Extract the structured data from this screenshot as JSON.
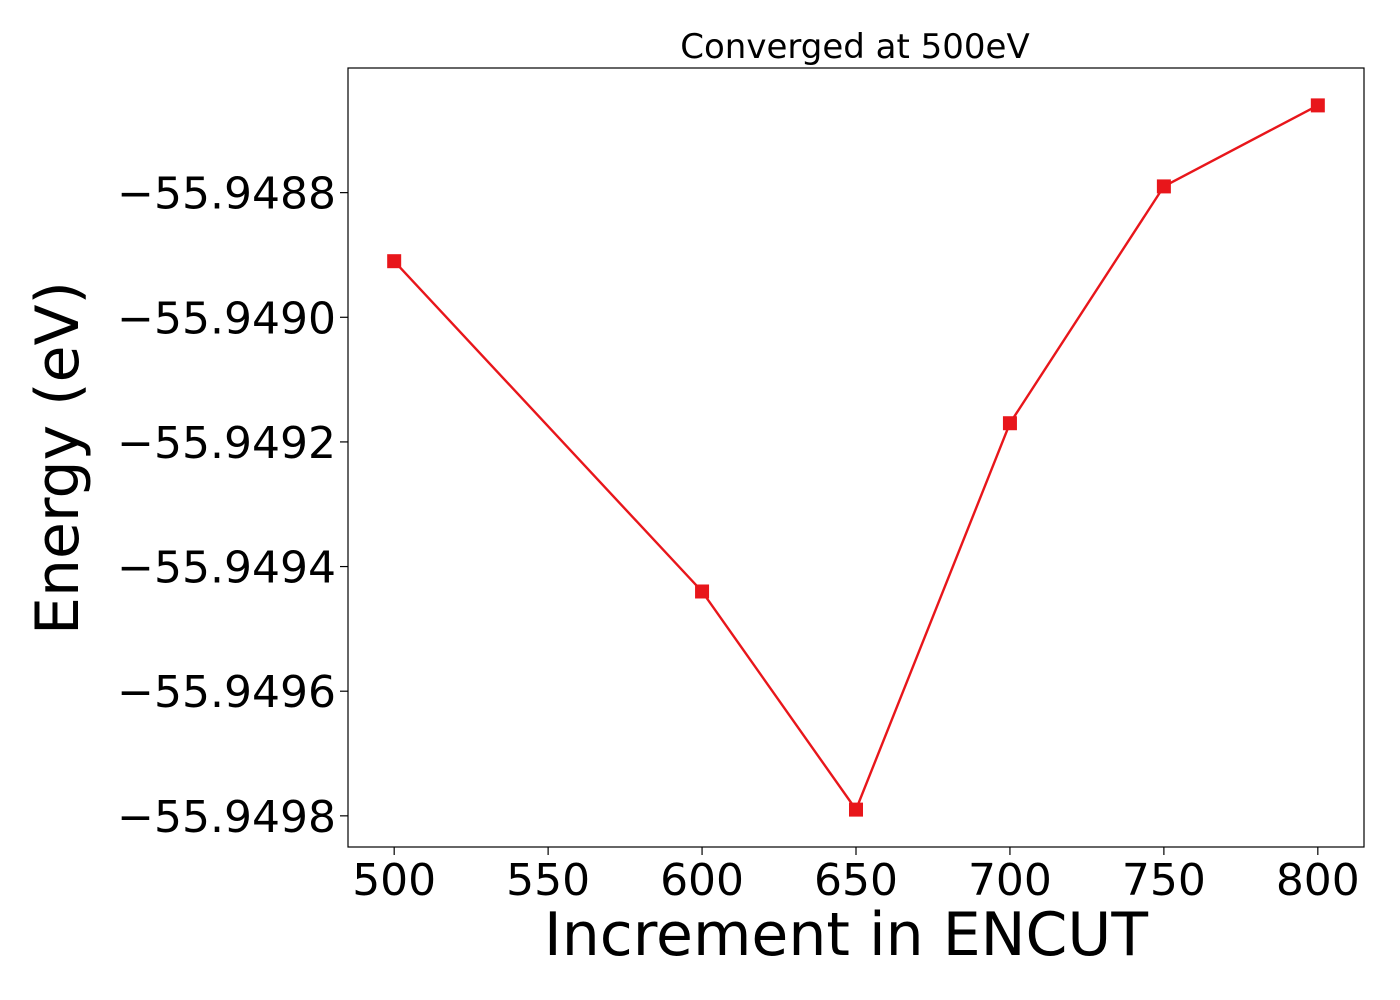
{
  "chart_data": {
    "type": "line",
    "title": "Converged at 500eV",
    "xlabel": "Increment in ENCUT",
    "ylabel": "Energy (eV)",
    "x": [
      500,
      600,
      650,
      700,
      750,
      800
    ],
    "series": [
      {
        "values": [
          -55.94891,
          -55.94944,
          -55.94979,
          -55.94917,
          -55.94879,
          -55.94866
        ],
        "color": "#e8161b",
        "marker": "square"
      }
    ],
    "xlim": [
      485,
      815
    ],
    "ylim": [
      -55.94985,
      -55.9486
    ],
    "xticks": [
      500,
      550,
      600,
      650,
      700,
      750,
      800
    ],
    "xtick_labels": [
      "500",
      "550",
      "600",
      "650",
      "700",
      "750",
      "800"
    ],
    "yticks": [
      -55.9498,
      -55.9496,
      -55.9494,
      -55.9492,
      -55.949,
      -55.9488
    ],
    "ytick_labels": [
      "−55.9498",
      "−55.9496",
      "−55.9494",
      "−55.9492",
      "−55.9490",
      "−55.9488"
    ],
    "grid": false,
    "legend": false
  }
}
